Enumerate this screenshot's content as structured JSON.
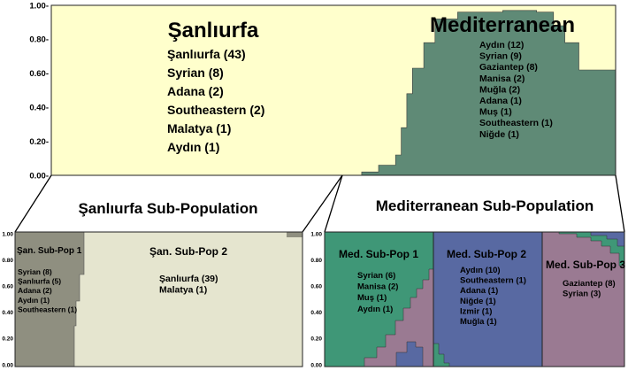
{
  "chart_data": [
    {
      "type": "area",
      "title": "",
      "y_ticks": [
        "1.00-",
        "0.80-",
        "0.60-",
        "0.40-",
        "0.20-",
        "0.00-"
      ],
      "ylim": [
        0,
        1
      ],
      "clusters": [
        {
          "name": "Şanlıurfa",
          "color": "#FFFFCC",
          "members": [
            "Şanlıurfa (43)",
            "Syrian (8)",
            "Adana (2)",
            "Southeastern (2)",
            "Malatya (1)",
            "Aydın (1)"
          ]
        },
        {
          "name": "Mediterranean",
          "color": "#5F8A76",
          "members": [
            "Aydın (12)",
            "Syrian (9)",
            "Gaziantep (8)",
            "Manisa (2)",
            "Muğla (2)",
            "Adana (1)",
            "Muş (1)",
            "Southeastern (1)",
            "Niğde (1)"
          ]
        }
      ],
      "mediterranean_membership_profile": [
        {
          "x": 0.0,
          "y": 0.0
        },
        {
          "x": 0.5,
          "y": 0.0
        },
        {
          "x": 0.55,
          "y": 0.02
        },
        {
          "x": 0.58,
          "y": 0.06
        },
        {
          "x": 0.61,
          "y": 0.12
        },
        {
          "x": 0.62,
          "y": 0.28
        },
        {
          "x": 0.63,
          "y": 0.48
        },
        {
          "x": 0.64,
          "y": 0.63
        },
        {
          "x": 0.66,
          "y": 0.78
        },
        {
          "x": 0.68,
          "y": 0.92
        },
        {
          "x": 0.72,
          "y": 0.96
        },
        {
          "x": 0.8,
          "y": 0.97
        },
        {
          "x": 0.86,
          "y": 0.96
        },
        {
          "x": 0.89,
          "y": 0.88
        },
        {
          "x": 0.91,
          "y": 0.78
        },
        {
          "x": 0.935,
          "y": 0.62
        },
        {
          "x": 1.0,
          "y": 0.61
        }
      ]
    },
    {
      "type": "area",
      "title": "Şanlıurfa Sub-Population",
      "y_ticks": [
        "1.00",
        "0.80",
        "0.60",
        "0.40",
        "0.20",
        "0.00"
      ],
      "ylim": [
        0,
        1
      ],
      "clusters": [
        {
          "name": "Şan. Sub-Pop 1",
          "color": "#8F8F80",
          "members": [
            "Syrian (8)",
            "Şanlıurfa (5)",
            "Adana (2)",
            "Aydın (1)",
            "Southeastern (1)"
          ]
        },
        {
          "name": "Şan. Sub-Pop 2",
          "color": "#E5E5CF",
          "members": [
            "Şanlıurfa (39)",
            "Malatya (1)"
          ]
        }
      ]
    },
    {
      "type": "area",
      "title": "Mediterranean Sub-Population",
      "y_ticks": [
        "1.00",
        "0.80",
        "0.60",
        "0.40",
        "0.20",
        "0.00"
      ],
      "ylim": [
        0,
        1
      ],
      "clusters": [
        {
          "name": "Med. Sub-Pop 1",
          "color": "#3F9777",
          "members": [
            "Syrian (6)",
            "Manisa (2)",
            "Muş (1)",
            "Aydın (1)"
          ]
        },
        {
          "name": "Med. Sub-Pop 2",
          "color": "#5869A2",
          "members": [
            "Aydın (10)",
            "Southeastern (1)",
            "Adana (1)",
            "Niğde (1)",
            "Izmir (1)",
            "Muğla (1)"
          ]
        },
        {
          "name": "Med. Sub-Pop 3",
          "color": "#9A7A92",
          "members": [
            "Gaziantep (8)",
            "Syrian (3)"
          ]
        }
      ]
    }
  ]
}
